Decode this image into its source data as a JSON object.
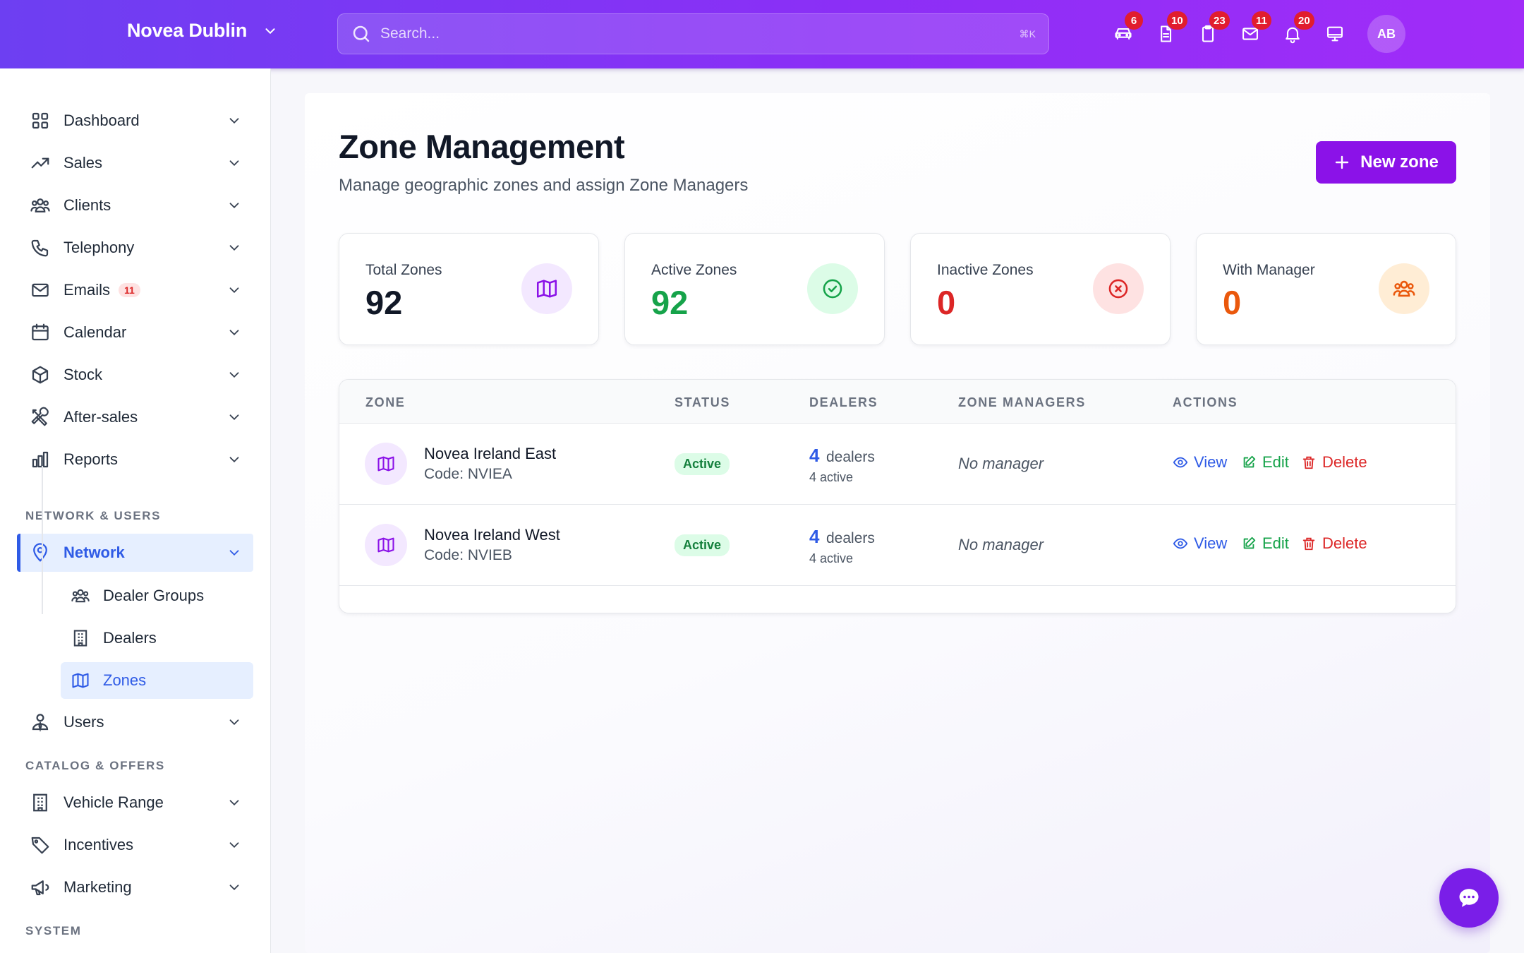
{
  "header": {
    "brand": "Novea Dublin",
    "search_placeholder": "Search...",
    "search_shortcut": "⌘K",
    "icons": [
      {
        "name": "car-icon",
        "badge": "6"
      },
      {
        "name": "document-icon",
        "badge": "10"
      },
      {
        "name": "clipboard-icon",
        "badge": "23"
      },
      {
        "name": "mail-icon",
        "badge": "11"
      },
      {
        "name": "bell-icon",
        "badge": "20"
      },
      {
        "name": "monitor-icon",
        "badge": ""
      }
    ],
    "avatar_initials": "AB"
  },
  "sidebar": {
    "items": [
      {
        "label": "Dashboard",
        "icon": "grid-icon"
      },
      {
        "label": "Sales",
        "icon": "trending-up-icon"
      },
      {
        "label": "Clients",
        "icon": "users-icon"
      },
      {
        "label": "Telephony",
        "icon": "phone-icon"
      },
      {
        "label": "Emails",
        "icon": "mail-icon",
        "badge": "11"
      },
      {
        "label": "Calendar",
        "icon": "calendar-icon"
      },
      {
        "label": "Stock",
        "icon": "box-icon"
      },
      {
        "label": "After-sales",
        "icon": "tools-icon"
      },
      {
        "label": "Reports",
        "icon": "bar-chart-icon"
      }
    ],
    "section_network": "NETWORK & USERS",
    "network": {
      "label": "Network",
      "icon": "map-pin-icon"
    },
    "network_sub": [
      {
        "label": "Dealer Groups",
        "icon": "users-icon"
      },
      {
        "label": "Dealers",
        "icon": "building-icon"
      },
      {
        "label": "Zones",
        "icon": "map-icon"
      }
    ],
    "users": {
      "label": "Users",
      "icon": "user-tie-icon"
    },
    "section_catalog": "CATALOG & OFFERS",
    "catalog": [
      {
        "label": "Vehicle Range",
        "icon": "building-icon"
      },
      {
        "label": "Incentives",
        "icon": "tag-icon"
      },
      {
        "label": "Marketing",
        "icon": "megaphone-icon"
      }
    ],
    "section_system": "SYSTEM"
  },
  "page": {
    "title": "Zone Management",
    "subtitle": "Manage geographic zones and assign Zone Managers",
    "new_button": "New zone"
  },
  "stats": [
    {
      "label": "Total Zones",
      "value": "92",
      "color": "#111827",
      "icon": "map-icon",
      "icon_bg": "#f3e8ff",
      "icon_color": "#8b12e8"
    },
    {
      "label": "Active Zones",
      "value": "92",
      "color": "#16a34a",
      "icon": "check-circle-icon",
      "icon_bg": "#dcfce7",
      "icon_color": "#16a34a"
    },
    {
      "label": "Inactive Zones",
      "value": "0",
      "color": "#dc2626",
      "icon": "x-circle-icon",
      "icon_bg": "#fee2e2",
      "icon_color": "#dc2626"
    },
    {
      "label": "With Manager",
      "value": "0",
      "color": "#ea580c",
      "icon": "users-icon",
      "icon_bg": "#ffedd5",
      "icon_color": "#ea580c"
    }
  ],
  "table": {
    "headers": [
      "ZONE",
      "STATUS",
      "DEALERS",
      "ZONE MANAGERS",
      "ACTIONS"
    ],
    "rows": [
      {
        "name": "Novea Ireland East",
        "code": "Code: NVIEA",
        "status": "Active",
        "dealers": "4",
        "dealers_word": "dealers",
        "dealers_active": "4 active",
        "manager": "No manager"
      },
      {
        "name": "Novea Ireland West",
        "code": "Code: NVIEB",
        "status": "Active",
        "dealers": "4",
        "dealers_word": "dealers",
        "dealers_active": "4 active",
        "manager": "No manager"
      }
    ],
    "actions": {
      "view": "View",
      "edit": "Edit",
      "delete": "Delete"
    }
  }
}
